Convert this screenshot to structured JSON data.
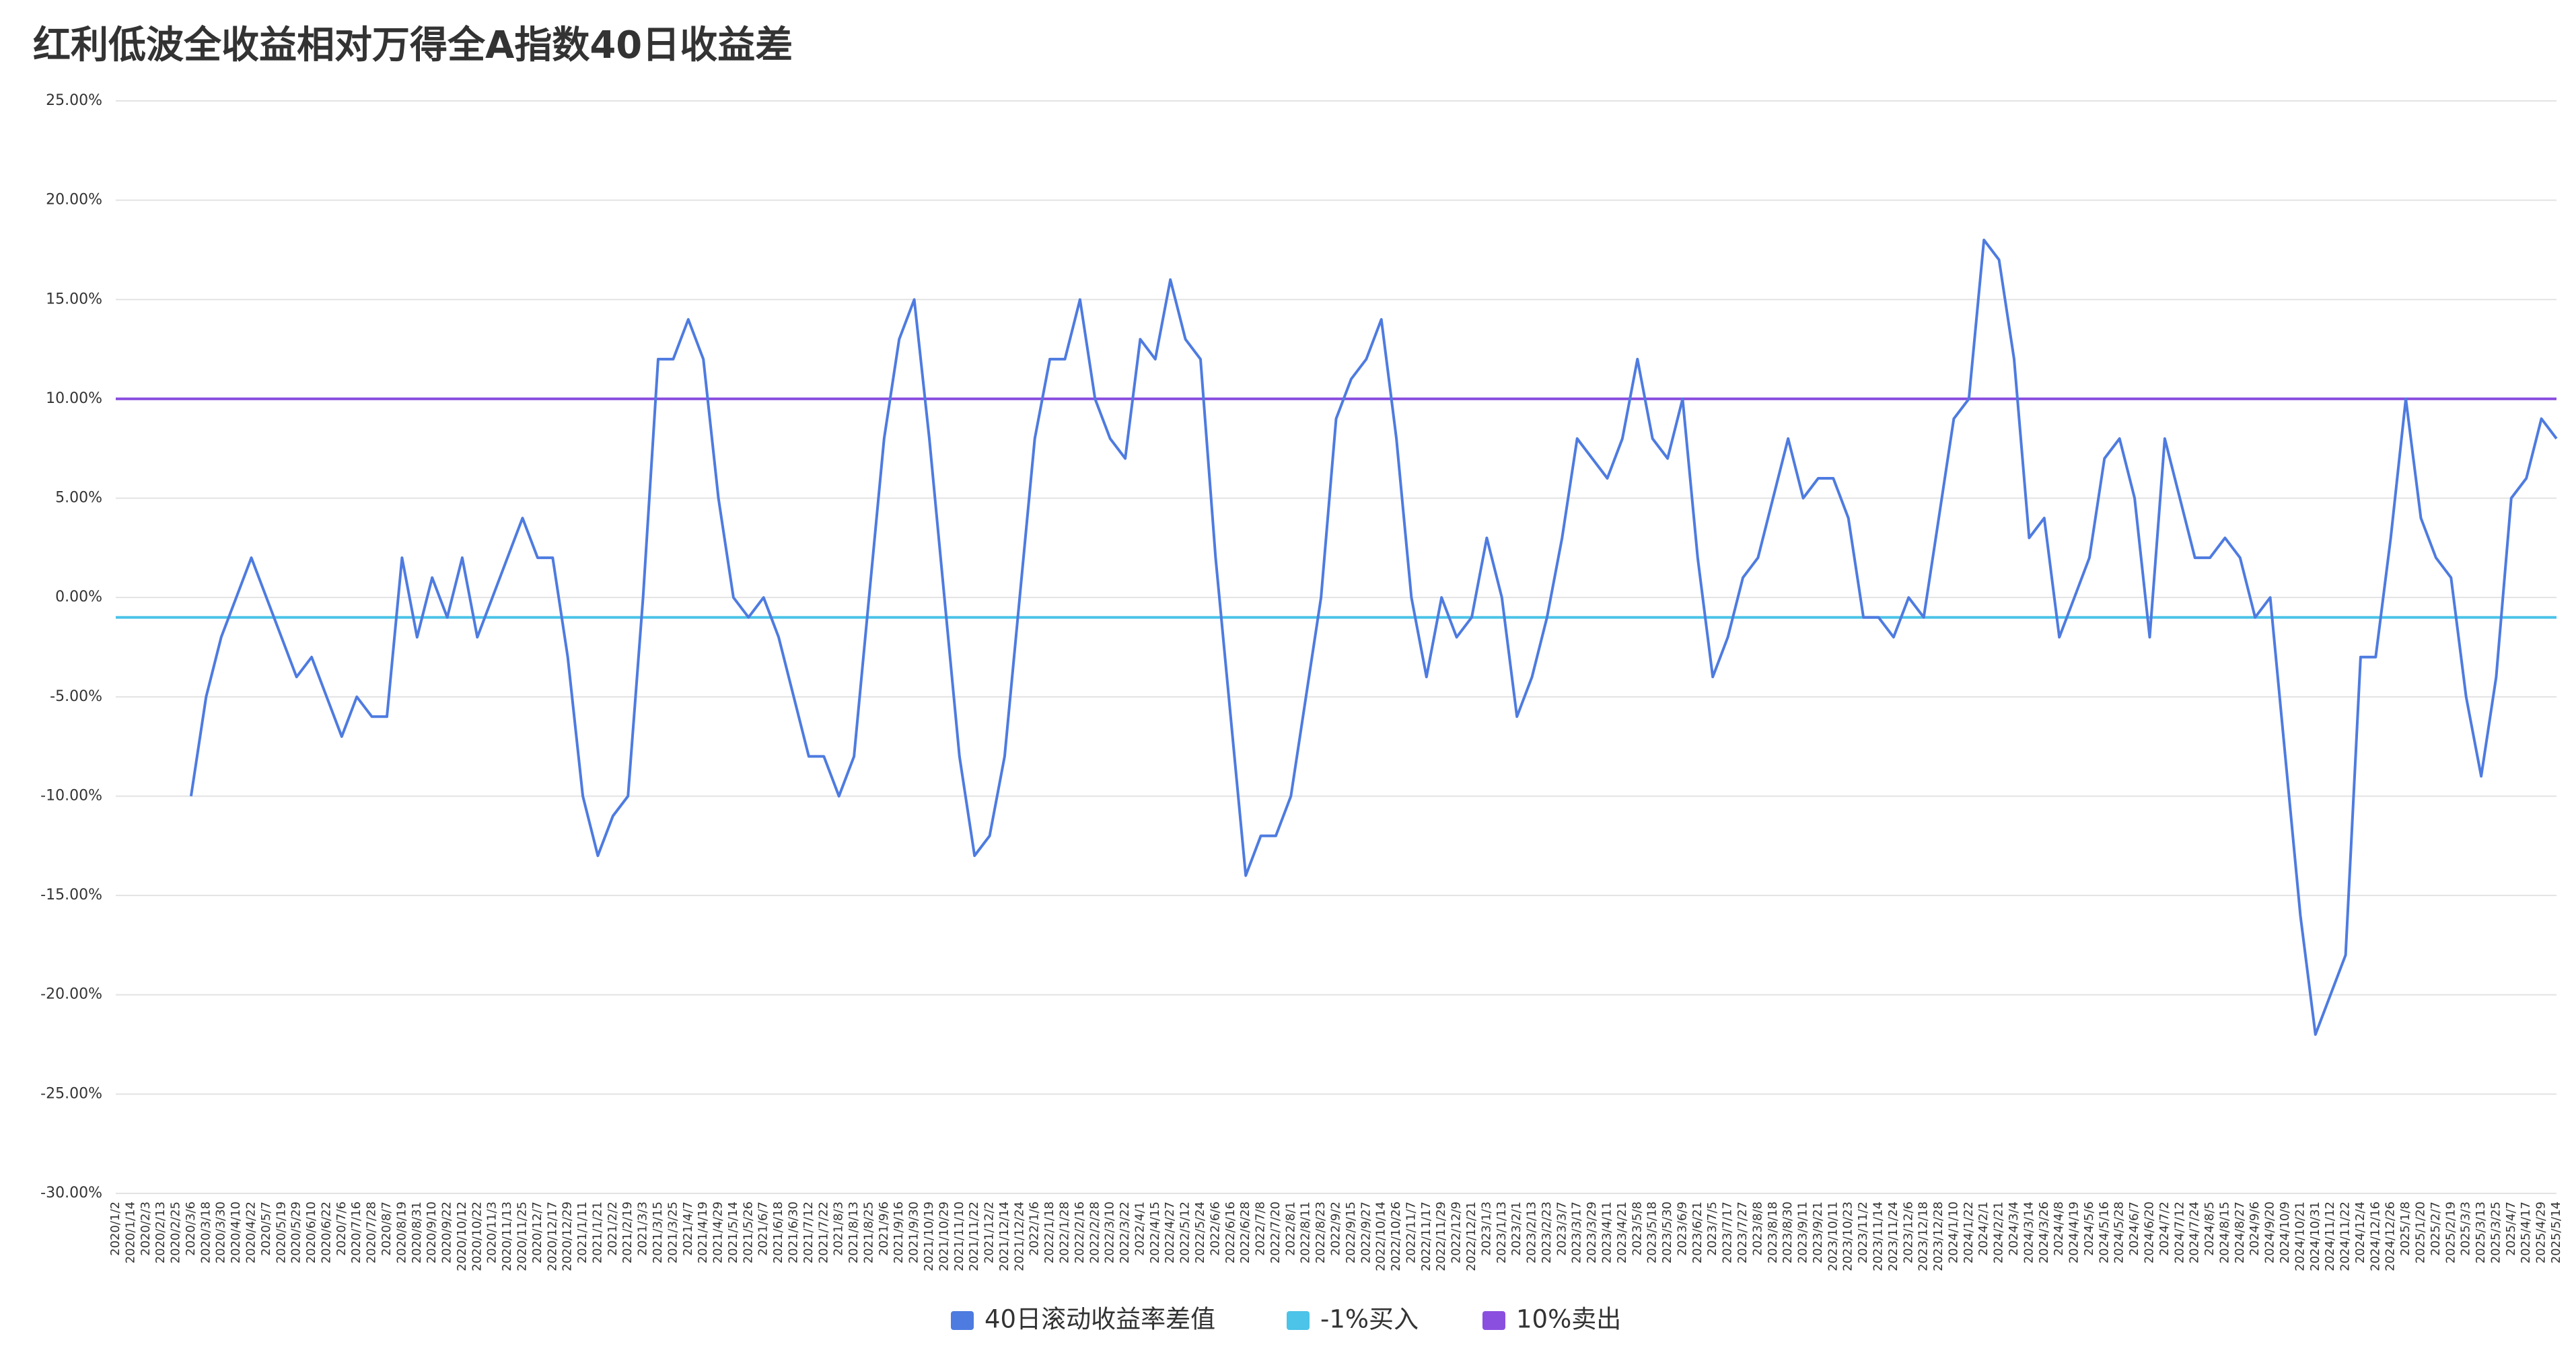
{
  "chart_data": {
    "type": "line",
    "title": "红利低波全收益相对万得全A指数40日收益差",
    "categories": [
      "2020/1/2",
      "2020/1/14",
      "2020/2/3",
      "2020/2/13",
      "2020/2/25",
      "2020/3/6",
      "2020/3/18",
      "2020/3/30",
      "2020/4/10",
      "2020/4/22",
      "2020/5/7",
      "2020/5/19",
      "2020/5/29",
      "2020/6/10",
      "2020/6/22",
      "2020/7/6",
      "2020/7/16",
      "2020/7/28",
      "2020/8/7",
      "2020/8/19",
      "2020/8/31",
      "2020/9/10",
      "2020/9/22",
      "2020/10/12",
      "2020/10/22",
      "2020/11/3",
      "2020/11/13",
      "2020/11/25",
      "2020/12/7",
      "2020/12/17",
      "2020/12/29",
      "2021/1/11",
      "2021/1/21",
      "2021/2/2",
      "2021/2/19",
      "2021/3/3",
      "2021/3/15",
      "2021/3/25",
      "2021/4/7",
      "2021/4/19",
      "2021/4/29",
      "2021/5/14",
      "2021/5/26",
      "2021/6/7",
      "2021/6/18",
      "2021/6/30",
      "2021/7/12",
      "2021/7/22",
      "2021/8/3",
      "2021/8/13",
      "2021/8/25",
      "2021/9/6",
      "2021/9/16",
      "2021/9/30",
      "2021/10/19",
      "2021/10/29",
      "2021/11/10",
      "2021/11/22",
      "2021/12/2",
      "2021/12/14",
      "2021/12/24",
      "2022/1/6",
      "2022/1/18",
      "2022/1/28",
      "2022/2/16",
      "2022/2/28",
      "2022/3/10",
      "2022/3/22",
      "2022/4/1",
      "2022/4/15",
      "2022/4/27",
      "2022/5/12",
      "2022/5/24",
      "2022/6/6",
      "2022/6/16",
      "2022/6/28",
      "2022/7/8",
      "2022/7/20",
      "2022/8/1",
      "2022/8/11",
      "2022/8/23",
      "2022/9/2",
      "2022/9/15",
      "2022/9/27",
      "2022/10/14",
      "2022/10/26",
      "2022/11/7",
      "2022/11/17",
      "2022/11/29",
      "2022/12/9",
      "2022/12/21",
      "2023/1/3",
      "2023/1/13",
      "2023/2/1",
      "2023/2/13",
      "2023/2/23",
      "2023/3/7",
      "2023/3/17",
      "2023/3/29",
      "2023/4/11",
      "2023/4/21",
      "2023/5/8",
      "2023/5/18",
      "2023/5/30",
      "2023/6/9",
      "2023/6/21",
      "2023/7/5",
      "2023/7/17",
      "2023/7/27",
      "2023/8/8",
      "2023/8/18",
      "2023/8/30",
      "2023/9/11",
      "2023/9/21",
      "2023/10/11",
      "2023/10/23",
      "2023/11/2",
      "2023/11/14",
      "2023/11/24",
      "2023/12/6",
      "2023/12/18",
      "2023/12/28",
      "2024/1/10",
      "2024/1/22",
      "2024/2/1",
      "2024/2/21",
      "2024/3/4",
      "2024/3/14",
      "2024/3/26",
      "2024/4/8",
      "2024/4/19",
      "2024/5/6",
      "2024/5/16",
      "2024/5/28",
      "2024/6/7",
      "2024/6/20",
      "2024/7/2",
      "2024/7/12",
      "2024/7/24",
      "2024/8/5",
      "2024/8/15",
      "2024/8/27",
      "2024/9/6",
      "2024/9/20",
      "2024/10/9",
      "2024/10/21",
      "2024/10/31",
      "2024/11/12",
      "2024/11/22",
      "2024/12/4",
      "2024/12/16",
      "2024/12/26",
      "2025/1/8",
      "2025/1/20",
      "2025/2/7",
      "2025/2/19",
      "2025/3/3",
      "2025/3/13",
      "2025/3/25",
      "2025/4/7",
      "2025/4/17",
      "2025/4/29",
      "2025/5/14"
    ],
    "series": [
      {
        "name": "40日滚动收益率差值",
        "color": "#4e7be0",
        "values": [
          null,
          null,
          null,
          null,
          null,
          -10,
          -5,
          -2,
          0,
          2,
          0,
          -2,
          -4,
          -3,
          -5,
          -7,
          -5,
          -6,
          -6,
          2,
          -2,
          1,
          -1,
          2,
          -2,
          0,
          2,
          4,
          2,
          2,
          -3,
          -10,
          -13,
          -11,
          -10,
          0,
          12,
          12,
          14,
          12,
          5,
          0,
          -1,
          0,
          -2,
          -5,
          -8,
          -8,
          -10,
          -8,
          0,
          8,
          13,
          15,
          8,
          0,
          -8,
          -13,
          -12,
          -8,
          0,
          8,
          12,
          12,
          15,
          10,
          8,
          7,
          13,
          12,
          16,
          13,
          12,
          2,
          -6,
          -14,
          -12,
          -12,
          -10,
          -5,
          0,
          9,
          11,
          12,
          14,
          8,
          0,
          -4,
          0,
          -2,
          -1,
          3,
          0,
          -6,
          -4,
          -1,
          3,
          8,
          7,
          6,
          8,
          12,
          8,
          7,
          10,
          2,
          -4,
          -2,
          1,
          2,
          5,
          8,
          5,
          6,
          6,
          4,
          -1,
          -1,
          -2,
          0,
          -1,
          4,
          9,
          10,
          18,
          17,
          12,
          3,
          4,
          -2,
          0,
          2,
          7,
          8,
          5,
          -2,
          8,
          5,
          2,
          2,
          3,
          2,
          -1,
          0,
          -8,
          -16,
          -22,
          -20,
          -18,
          -3,
          -3,
          3,
          10,
          4,
          2,
          1,
          -5,
          -9,
          -4,
          5,
          6,
          9,
          8
        ]
      }
    ],
    "reference_lines": [
      {
        "name": "-1%买入",
        "color": "#4cc3e8",
        "value": -1
      },
      {
        "name": "10%卖出",
        "color": "#8b4fe0",
        "value": 10
      }
    ],
    "ylim": [
      -30,
      25
    ],
    "yticks": [
      {
        "value": -30,
        "label": "-30.00%"
      },
      {
        "value": -25,
        "label": "-25.00%"
      },
      {
        "value": -20,
        "label": "-20.00%"
      },
      {
        "value": -15,
        "label": "-15.00%"
      },
      {
        "value": -10,
        "label": "-10.00%"
      },
      {
        "value": -5,
        "label": "-5.00%"
      },
      {
        "value": 0,
        "label": "0.00%"
      },
      {
        "value": 5,
        "label": "5.00%"
      },
      {
        "value": 10,
        "label": "10.00%"
      },
      {
        "value": 15,
        "label": "15.00%"
      },
      {
        "value": 20,
        "label": "20.00%"
      },
      {
        "value": 25,
        "label": "25.00%"
      }
    ],
    "grid": true,
    "legend": "bottom"
  }
}
